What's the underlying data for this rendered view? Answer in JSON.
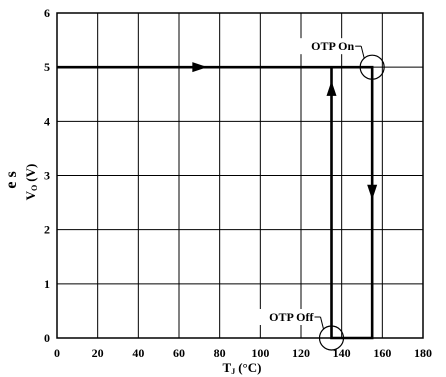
{
  "chart_data": {
    "type": "line",
    "title": "",
    "xlabel": "T",
    "xlabel_sub": "J",
    "xlabel_unit": "(°C)",
    "ylabel": "V",
    "ylabel_sub": "O",
    "ylabel_unit": "(V)",
    "side_fragment": "e s",
    "xlim": [
      0,
      180
    ],
    "ylim": [
      0,
      6
    ],
    "x_ticks": [
      "0",
      "20",
      "40",
      "60",
      "80",
      "100",
      "120",
      "140",
      "160",
      "180"
    ],
    "y_ticks": [
      "0",
      "1",
      "2",
      "3",
      "4",
      "5",
      "6"
    ],
    "grid": true,
    "series": [
      {
        "x": [
          0,
          155,
          155,
          135,
          135,
          155
        ],
        "y": [
          5,
          5,
          0,
          0,
          5,
          5
        ]
      }
    ],
    "arrows": [
      {
        "x": 70,
        "y": 5,
        "direction": "right"
      },
      {
        "x": 155,
        "y": 2.7,
        "direction": "down"
      },
      {
        "x": 135,
        "y": 4.6,
        "direction": "up"
      }
    ],
    "annotations": [
      {
        "text": "OTP On",
        "x": 155,
        "y": 5
      },
      {
        "text": "OTP Off",
        "x": 135,
        "y": 0
      }
    ]
  }
}
